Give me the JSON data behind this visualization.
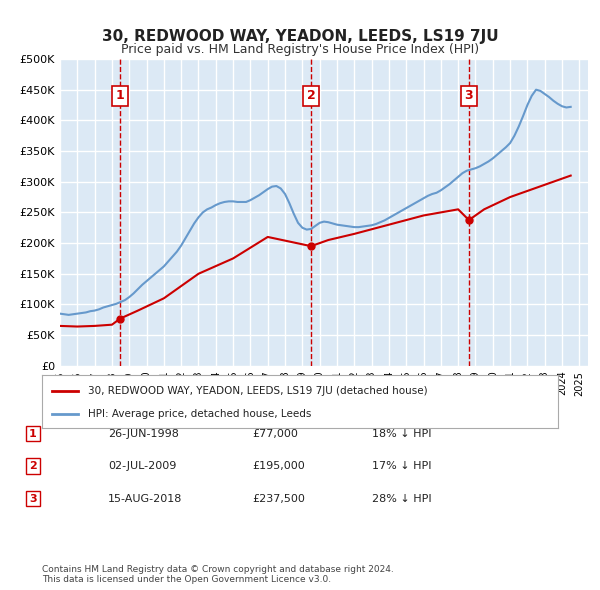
{
  "title": "30, REDWOOD WAY, YEADON, LEEDS, LS19 7JU",
  "subtitle": "Price paid vs. HM Land Registry's House Price Index (HPI)",
  "ylabel_ticks": [
    "£0",
    "£50K",
    "£100K",
    "£150K",
    "£200K",
    "£250K",
    "£300K",
    "£350K",
    "£400K",
    "£450K",
    "£500K"
  ],
  "ylim": [
    0,
    500000
  ],
  "xlim_start": 1995.0,
  "xlim_end": 2025.5,
  "background_color": "#dce9f5",
  "plot_bg": "#dce9f5",
  "grid_color": "#ffffff",
  "sale_color": "#cc0000",
  "hpi_color": "#6699cc",
  "vline_color": "#cc0000",
  "sale_dates": [
    1998.48,
    2009.5,
    2018.62
  ],
  "sale_prices": [
    77000,
    195000,
    237500
  ],
  "sale_labels": [
    "1",
    "2",
    "3"
  ],
  "legend_sale": "30, REDWOOD WAY, YEADON, LEEDS, LS19 7JU (detached house)",
  "legend_hpi": "HPI: Average price, detached house, Leeds",
  "table_rows": [
    [
      "1",
      "26-JUN-1998",
      "£77,000",
      "18% ↓ HPI"
    ],
    [
      "2",
      "02-JUL-2009",
      "£195,000",
      "17% ↓ HPI"
    ],
    [
      "3",
      "15-AUG-2018",
      "£237,500",
      "28% ↓ HPI"
    ]
  ],
  "footer": "Contains HM Land Registry data © Crown copyright and database right 2024.\nThis data is licensed under the Open Government Licence v3.0.",
  "hpi_years": [
    1995.0,
    1995.25,
    1995.5,
    1995.75,
    1996.0,
    1996.25,
    1996.5,
    1996.75,
    1997.0,
    1997.25,
    1997.5,
    1997.75,
    1998.0,
    1998.25,
    1998.5,
    1998.75,
    1999.0,
    1999.25,
    1999.5,
    1999.75,
    2000.0,
    2000.25,
    2000.5,
    2000.75,
    2001.0,
    2001.25,
    2001.5,
    2001.75,
    2002.0,
    2002.25,
    2002.5,
    2002.75,
    2003.0,
    2003.25,
    2003.5,
    2003.75,
    2004.0,
    2004.25,
    2004.5,
    2004.75,
    2005.0,
    2005.25,
    2005.5,
    2005.75,
    2006.0,
    2006.25,
    2006.5,
    2006.75,
    2007.0,
    2007.25,
    2007.5,
    2007.75,
    2008.0,
    2008.25,
    2008.5,
    2008.75,
    2009.0,
    2009.25,
    2009.5,
    2009.75,
    2010.0,
    2010.25,
    2010.5,
    2010.75,
    2011.0,
    2011.25,
    2011.5,
    2011.75,
    2012.0,
    2012.25,
    2012.5,
    2012.75,
    2013.0,
    2013.25,
    2013.5,
    2013.75,
    2014.0,
    2014.25,
    2014.5,
    2014.75,
    2015.0,
    2015.25,
    2015.5,
    2015.75,
    2016.0,
    2016.25,
    2016.5,
    2016.75,
    2017.0,
    2017.25,
    2017.5,
    2017.75,
    2018.0,
    2018.25,
    2018.5,
    2018.75,
    2019.0,
    2019.25,
    2019.5,
    2019.75,
    2020.0,
    2020.25,
    2020.5,
    2020.75,
    2021.0,
    2021.25,
    2021.5,
    2021.75,
    2022.0,
    2022.25,
    2022.5,
    2022.75,
    2023.0,
    2023.25,
    2023.5,
    2023.75,
    2024.0,
    2024.25,
    2024.5
  ],
  "hpi_values": [
    85000,
    84000,
    83000,
    84000,
    85000,
    86000,
    87000,
    89000,
    90000,
    92000,
    95000,
    97000,
    99000,
    101000,
    104000,
    107000,
    112000,
    118000,
    125000,
    132000,
    138000,
    144000,
    150000,
    156000,
    162000,
    170000,
    178000,
    186000,
    196000,
    208000,
    220000,
    232000,
    242000,
    250000,
    255000,
    258000,
    262000,
    265000,
    267000,
    268000,
    268000,
    267000,
    267000,
    267000,
    270000,
    274000,
    278000,
    283000,
    288000,
    292000,
    293000,
    289000,
    280000,
    265000,
    248000,
    233000,
    225000,
    222000,
    223000,
    228000,
    233000,
    235000,
    234000,
    232000,
    230000,
    229000,
    228000,
    227000,
    226000,
    226000,
    227000,
    228000,
    229000,
    231000,
    234000,
    237000,
    241000,
    245000,
    249000,
    253000,
    257000,
    261000,
    265000,
    269000,
    273000,
    277000,
    280000,
    282000,
    286000,
    291000,
    296000,
    302000,
    308000,
    314000,
    318000,
    320000,
    322000,
    325000,
    329000,
    333000,
    338000,
    344000,
    350000,
    356000,
    363000,
    375000,
    390000,
    407000,
    425000,
    440000,
    450000,
    448000,
    443000,
    438000,
    432000,
    427000,
    423000,
    421000,
    422000
  ],
  "sale_line_years": [
    1995.0,
    1996.0,
    1997.0,
    1998.0,
    1998.48,
    1999.5,
    2001.0,
    2003.0,
    2005.0,
    2007.0,
    2009.5,
    2010.5,
    2012.0,
    2014.0,
    2016.0,
    2018.0,
    2018.62,
    2019.5,
    2021.0,
    2022.0,
    2023.0,
    2024.0,
    2024.5
  ],
  "sale_line_values": [
    65000,
    64000,
    65000,
    67000,
    77000,
    90000,
    110000,
    150000,
    175000,
    210000,
    195000,
    205000,
    215000,
    230000,
    245000,
    255000,
    237500,
    255000,
    275000,
    285000,
    295000,
    305000,
    310000
  ]
}
